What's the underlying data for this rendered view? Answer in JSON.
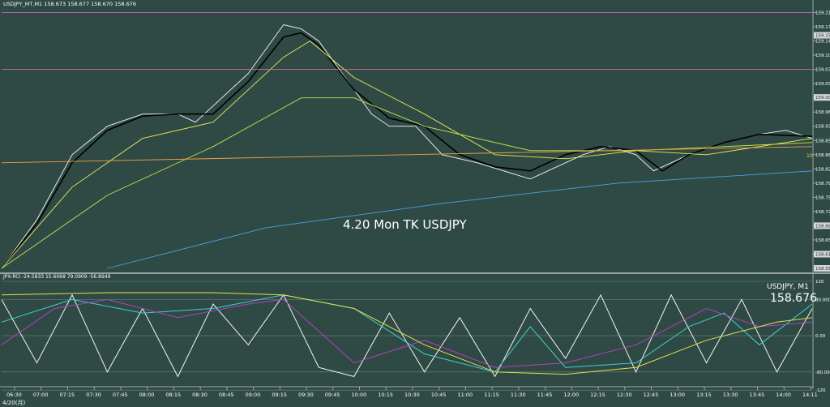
{
  "window": {
    "header": "USDJPY_MT,M1  158.673 158.677 158.670 158.676",
    "watermark": "4.20 Mon TK USDJPY",
    "sub_header": "JPX-RCI -24.5833 15.6068 79.0909 -56.8949",
    "sub_symbol": "USDJPY, M1",
    "sub_price": "158.676",
    "date_label": "4/20(月)",
    "bg_color": "#2f4a44"
  },
  "chart_data": [
    {
      "type": "line",
      "title": "",
      "x_ticks": [
        "06:30",
        "07:00",
        "07:15",
        "07:30",
        "07:45",
        "08:00",
        "08:15",
        "08:30",
        "08:45",
        "09:00",
        "09:15",
        "09:30",
        "09:45",
        "10:00",
        "10:15",
        "10:30",
        "10:45",
        "11:00",
        "11:15",
        "11:30",
        "11:45",
        "12:00",
        "12:15",
        "12:30",
        "12:45",
        "13:00",
        "13:15",
        "13:30",
        "13:45",
        "14:00",
        "14:11"
      ],
      "y_ticks": [
        "159.210",
        "159.175",
        "159.154",
        "159.140",
        "159.105",
        "159.070",
        "159.035",
        "159.000",
        "158.965",
        "158.930",
        "158.895",
        "158.860",
        "158.825",
        "158.790",
        "158.755",
        "158.720",
        "158.685",
        "158.650",
        "158.615",
        "158.580"
      ],
      "y_tick_values": [
        159.21,
        159.175,
        159.154,
        159.14,
        159.105,
        159.07,
        159.035,
        159.0,
        158.965,
        158.93,
        158.895,
        158.86,
        158.825,
        158.79,
        158.755,
        158.72,
        158.685,
        158.65,
        158.615,
        158.58
      ],
      "ylim": [
        158.57,
        159.225
      ],
      "xlim": [
        0,
        460
      ],
      "price_label_right": "10",
      "badges": [
        "159.154",
        "159.001",
        "158.685",
        "158.615",
        "158.580"
      ],
      "series": [
        {
          "color": "#f4f4f4",
          "values": [
            [
              0,
              158.58
            ],
            [
              20,
              158.7
            ],
            [
              40,
              158.86
            ],
            [
              60,
              158.93
            ],
            [
              80,
              158.96
            ],
            [
              100,
              158.96
            ],
            [
              110,
              158.94
            ],
            [
              120,
              158.98
            ],
            [
              140,
              159.06
            ],
            [
              150,
              159.12
            ],
            [
              160,
              159.18
            ],
            [
              170,
              159.17
            ],
            [
              180,
              159.14
            ],
            [
              190,
              159.08
            ],
            [
              200,
              159.02
            ],
            [
              210,
              158.96
            ],
            [
              220,
              158.93
            ],
            [
              235,
              158.93
            ],
            [
              250,
              158.86
            ],
            [
              270,
              158.84
            ],
            [
              300,
              158.8
            ],
            [
              310,
              158.82
            ],
            [
              330,
              158.86
            ],
            [
              345,
              158.88
            ],
            [
              360,
              158.86
            ],
            [
              370,
              158.82
            ],
            [
              390,
              158.86
            ],
            [
              410,
              158.89
            ],
            [
              430,
              158.91
            ],
            [
              445,
              158.92
            ],
            [
              460,
              158.9
            ]
          ]
        },
        {
          "color": "#000000",
          "values": [
            [
              0,
              158.58
            ],
            [
              20,
              158.69
            ],
            [
              40,
              158.84
            ],
            [
              60,
              158.92
            ],
            [
              80,
              158.955
            ],
            [
              100,
              158.96
            ],
            [
              120,
              158.96
            ],
            [
              140,
              159.04
            ],
            [
              160,
              159.15
            ],
            [
              170,
              159.16
            ],
            [
              180,
              159.13
            ],
            [
              200,
              159.02
            ],
            [
              220,
              158.95
            ],
            [
              240,
              158.93
            ],
            [
              260,
              158.86
            ],
            [
              280,
              158.83
            ],
            [
              300,
              158.82
            ],
            [
              320,
              158.86
            ],
            [
              340,
              158.88
            ],
            [
              360,
              158.87
            ],
            [
              375,
              158.82
            ],
            [
              390,
              158.86
            ],
            [
              410,
              158.89
            ],
            [
              430,
              158.91
            ],
            [
              460,
              158.905
            ]
          ]
        },
        {
          "color": "#e8e858",
          "values": [
            [
              0,
              158.58
            ],
            [
              40,
              158.78
            ],
            [
              80,
              158.9
            ],
            [
              120,
              158.94
            ],
            [
              160,
              159.1
            ],
            [
              175,
              159.14
            ],
            [
              200,
              159.05
            ],
            [
              240,
              158.96
            ],
            [
              280,
              158.86
            ],
            [
              320,
              158.85
            ],
            [
              360,
              158.87
            ],
            [
              400,
              158.86
            ],
            [
              460,
              158.9
            ]
          ]
        },
        {
          "color": "#c8e050",
          "values": [
            [
              0,
              158.58
            ],
            [
              60,
              158.76
            ],
            [
              120,
              158.88
            ],
            [
              170,
              159.0
            ],
            [
              200,
              159.0
            ],
            [
              240,
              158.93
            ],
            [
              300,
              158.87
            ],
            [
              360,
              158.87
            ],
            [
              460,
              158.89
            ]
          ]
        },
        {
          "color": "#f0a040",
          "values": [
            [
              0,
              158.84
            ],
            [
              460,
              158.88
            ]
          ]
        },
        {
          "color": "#4aa0e8",
          "values": [
            [
              60,
              158.58
            ],
            [
              150,
              158.68
            ],
            [
              250,
              158.74
            ],
            [
              350,
              158.79
            ],
            [
              460,
              158.82
            ]
          ]
        },
        {
          "color": "#c060b0",
          "values": [
            [
              0,
              159.21
            ],
            [
              460,
              159.21
            ]
          ]
        },
        {
          "color": "#d070a0",
          "values": [
            [
              0,
              159.07
            ],
            [
              460,
              159.07
            ]
          ]
        }
      ]
    },
    {
      "type": "line",
      "title": "",
      "ylim": [
        -100,
        120
      ],
      "y_ticks": [
        "120",
        "80.000",
        "0.00",
        "-80.000",
        "-120"
      ],
      "y_tick_values": [
        120,
        80,
        0,
        -80,
        -120
      ],
      "series": [
        {
          "color": "#f4f4f4",
          "values": [
            [
              0,
              80
            ],
            [
              20,
              -60
            ],
            [
              40,
              90
            ],
            [
              60,
              -80
            ],
            [
              80,
              60
            ],
            [
              100,
              -90
            ],
            [
              120,
              70
            ],
            [
              140,
              -20
            ],
            [
              160,
              90
            ],
            [
              180,
              -70
            ],
            [
              200,
              -90
            ],
            [
              220,
              50
            ],
            [
              240,
              -80
            ],
            [
              260,
              40
            ],
            [
              280,
              -90
            ],
            [
              300,
              60
            ],
            [
              320,
              -50
            ],
            [
              340,
              90
            ],
            [
              360,
              -80
            ],
            [
              380,
              90
            ],
            [
              400,
              -60
            ],
            [
              420,
              80
            ],
            [
              440,
              -80
            ],
            [
              460,
              60
            ]
          ]
        },
        {
          "color": "#40d0d0",
          "values": [
            [
              0,
              30
            ],
            [
              40,
              80
            ],
            [
              80,
              50
            ],
            [
              120,
              60
            ],
            [
              160,
              90
            ],
            [
              200,
              60
            ],
            [
              240,
              -40
            ],
            [
              280,
              -80
            ],
            [
              300,
              20
            ],
            [
              320,
              -70
            ],
            [
              360,
              -60
            ],
            [
              390,
              20
            ],
            [
              410,
              50
            ],
            [
              430,
              -20
            ],
            [
              460,
              70
            ]
          ]
        },
        {
          "color": "#b040c0",
          "values": [
            [
              0,
              -20
            ],
            [
              30,
              60
            ],
            [
              60,
              80
            ],
            [
              100,
              40
            ],
            [
              140,
              70
            ],
            [
              160,
              80
            ],
            [
              200,
              -60
            ],
            [
              240,
              -10
            ],
            [
              280,
              -70
            ],
            [
              320,
              -60
            ],
            [
              360,
              -20
            ],
            [
              400,
              60
            ],
            [
              430,
              20
            ],
            [
              460,
              30
            ]
          ]
        },
        {
          "color": "#e0e050",
          "values": [
            [
              0,
              90
            ],
            [
              60,
              95
            ],
            [
              120,
              95
            ],
            [
              160,
              90
            ],
            [
              200,
              60
            ],
            [
              240,
              -20
            ],
            [
              280,
              -80
            ],
            [
              320,
              -85
            ],
            [
              360,
              -70
            ],
            [
              400,
              -10
            ],
            [
              440,
              30
            ],
            [
              460,
              40
            ]
          ]
        }
      ]
    }
  ]
}
